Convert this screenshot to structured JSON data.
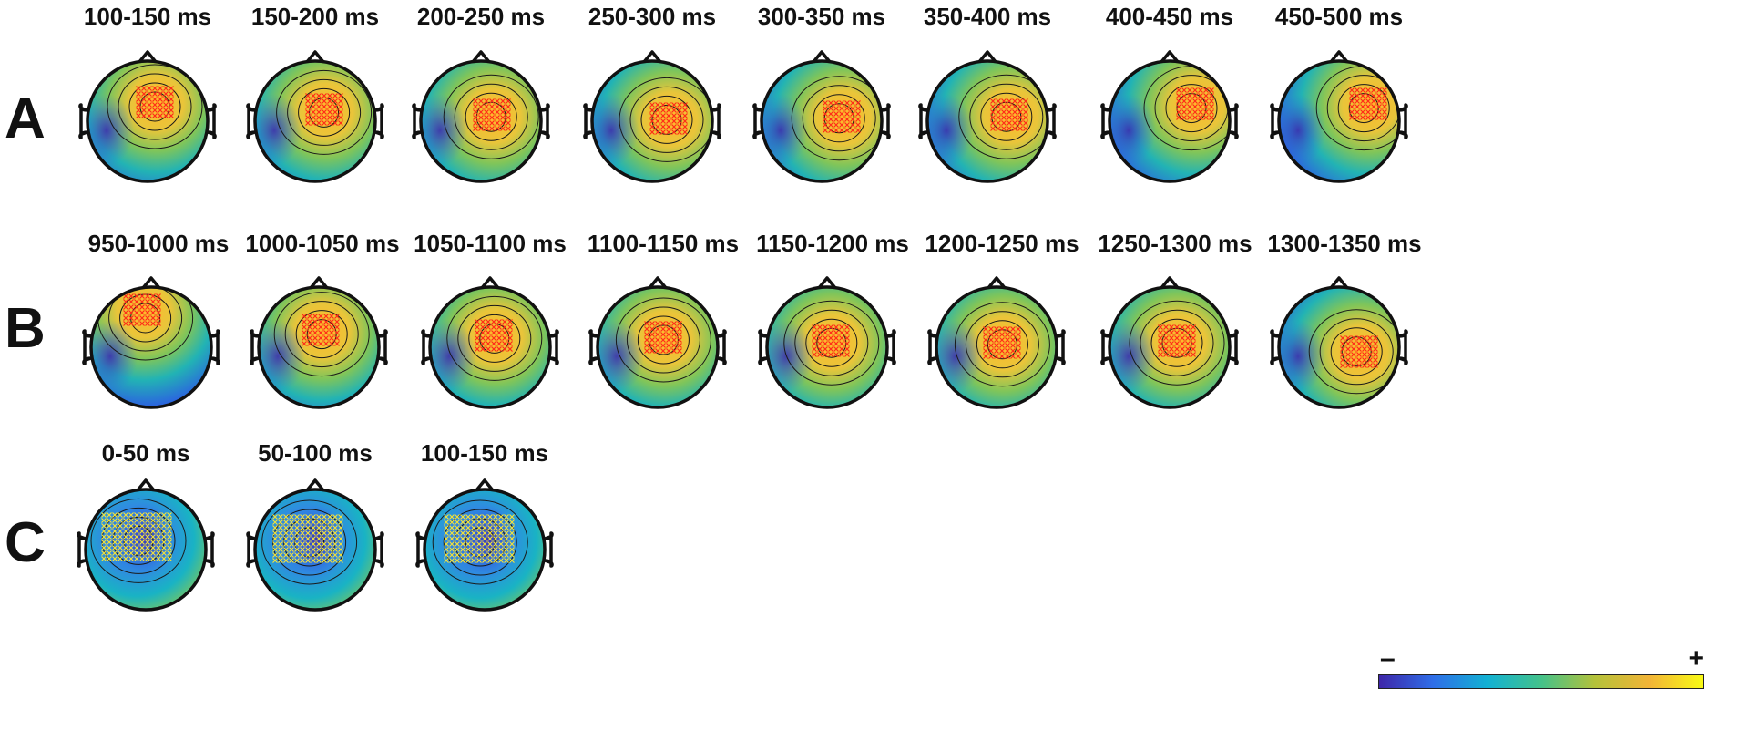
{
  "rows": [
    {
      "letter": "A",
      "marker": "red",
      "windows": [
        "100-150 ms",
        "150-200 ms",
        "200-250 ms",
        "250-300 ms",
        "300-350 ms",
        "350-400 ms",
        "400-450 ms",
        "450-500 ms"
      ]
    },
    {
      "letter": "B",
      "marker": "red",
      "windows": [
        "950-1000 ms",
        "1000-1050 ms",
        "1050-1100 ms",
        "1100-1150 ms",
        "1150-1200 ms",
        "1200-1250 ms",
        "1250-1300 ms",
        "1300-1350 ms"
      ]
    },
    {
      "letter": "C",
      "marker": "yellow",
      "windows": [
        "0-50 ms",
        "50-100 ms",
        "100-150 ms"
      ]
    }
  ],
  "colorbar": {
    "min_label": "–",
    "max_label": "+",
    "colors": [
      "#3e26a8",
      "#2f6ee8",
      "#12b1d3",
      "#44c28a",
      "#b5c23a",
      "#f2b437",
      "#f9fb15"
    ]
  },
  "marker_colors": {
    "red": "#ff2a1a",
    "yellow": "#f2e23a"
  }
}
